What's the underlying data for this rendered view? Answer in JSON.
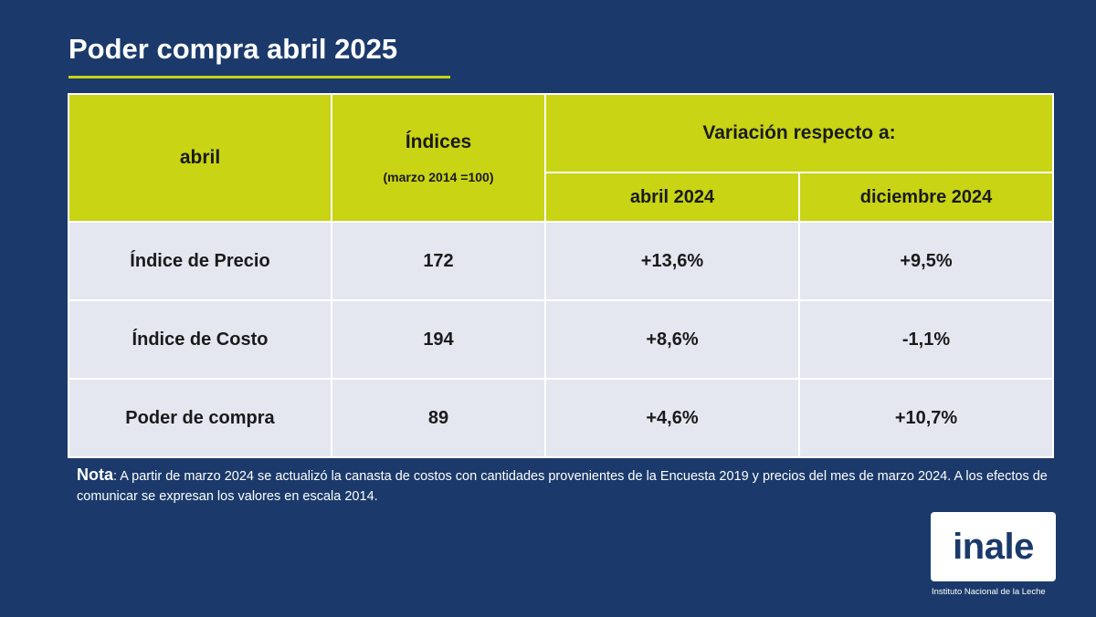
{
  "slide": {
    "title": "Poder compra abril 2025",
    "accent_color": "#c8d414",
    "background_color": "#1b3a6b"
  },
  "table": {
    "header": {
      "col1": "abril",
      "col2_title": "Índices",
      "col2_subtitle": "(marzo 2014 =100)",
      "group": "Variación respecto a:",
      "sub1": "abril 2024",
      "sub2": "diciembre 2024"
    },
    "rows": [
      {
        "label": "Índice de Precio",
        "index": "172",
        "var1": "+13,6%",
        "var2": "+9,5%"
      },
      {
        "label": "Índice de Costo",
        "index": "194",
        "var1": "+8,6%",
        "var2": "-1,1%"
      },
      {
        "label": "Poder de compra",
        "index": "89",
        "var1": "+4,6%",
        "var2": "+10,7%"
      }
    ]
  },
  "note": {
    "label": "Nota",
    "text": ": A partir de marzo 2024 se actualizó la canasta de costos con cantidades provenientes de la Encuesta 2019 y precios del mes de marzo 2024. A los efectos de comunicar se expresan los valores en escala 2014."
  },
  "logo": {
    "text": "inale",
    "subtitle": "Instituto Nacional de la Leche"
  }
}
